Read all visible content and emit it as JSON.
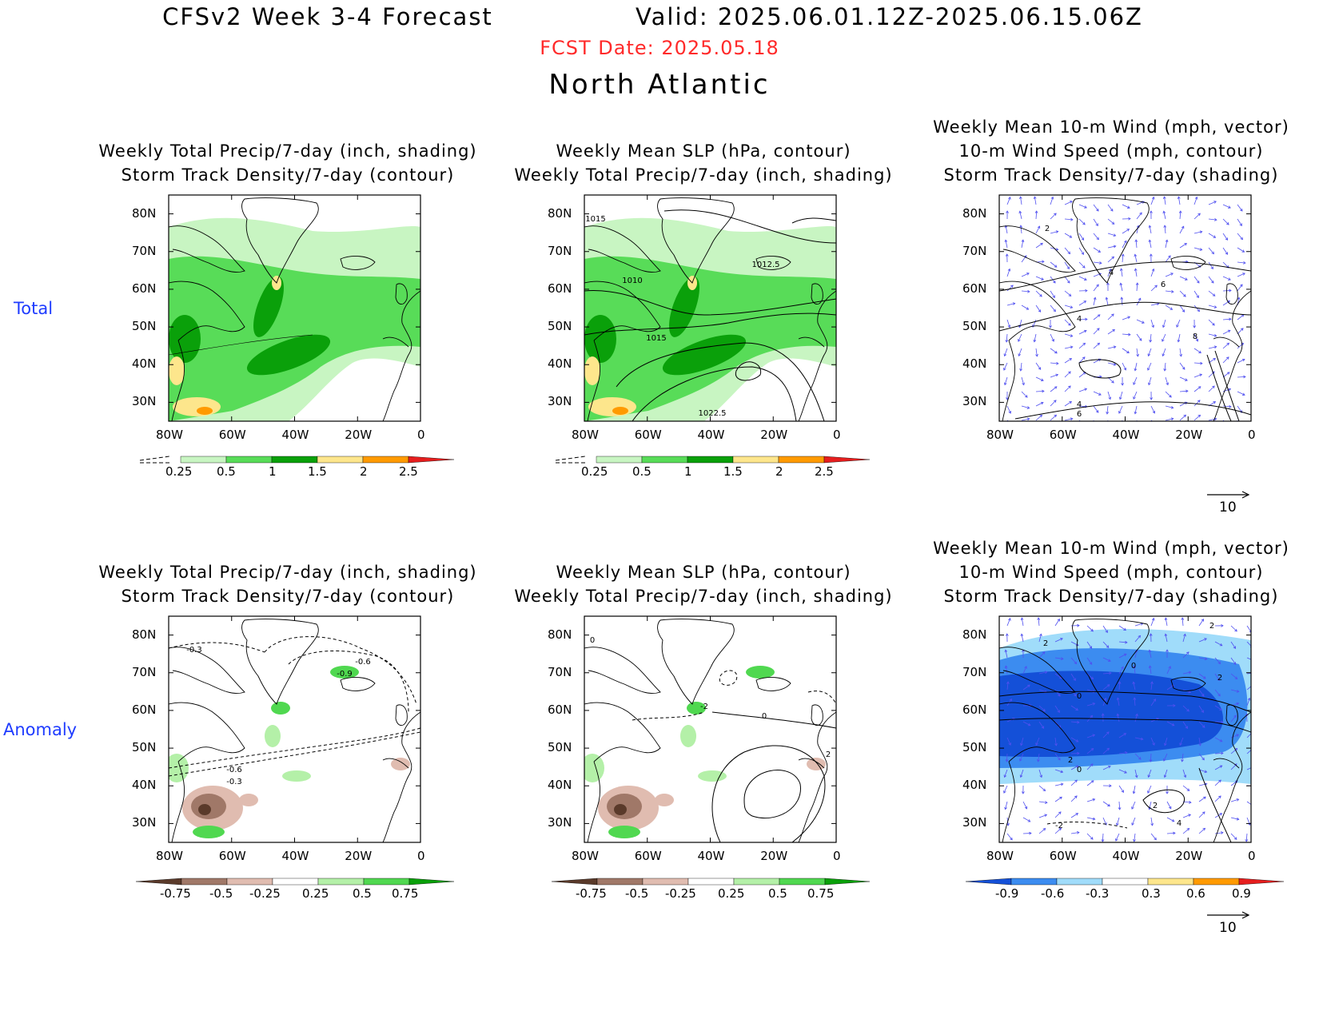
{
  "header": {
    "title": "CFSv2 Week 3-4 Forecast",
    "valid": "Valid: 2025.06.01.12Z-2025.06.15.06Z",
    "fcst_date": "FCST Date: 2025.05.18",
    "region": "North Atlantic"
  },
  "rows": {
    "total": "Total",
    "anomaly": "Anomaly"
  },
  "axes": {
    "lat_ticks": [
      "80N",
      "70N",
      "60N",
      "50N",
      "40N",
      "30N"
    ],
    "lon_ticks": [
      "80W",
      "60W",
      "40W",
      "20W",
      "0"
    ]
  },
  "colorbars": {
    "total_precip": [
      "0.25",
      "0.5",
      "1",
      "1.5",
      "2",
      "2.5"
    ],
    "anom_precip": [
      "-0.75",
      "-0.5",
      "-0.25",
      "0.25",
      "0.5",
      "0.75"
    ],
    "anom_storm": [
      "-0.9",
      "-0.6",
      "-0.3",
      "0.3",
      "0.6",
      "0.9"
    ]
  },
  "wind_ref": "10",
  "panels": [
    {
      "id": "total-precip-storm",
      "title_lines": [
        "",
        "Weekly Total Precip/7-day (inch, shading)",
        "Storm Track Density/7-day (contour)"
      ],
      "contour_labels": []
    },
    {
      "id": "total-slp-precip",
      "title_lines": [
        "",
        "Weekly Mean SLP (hPa, contour)",
        "Weekly Total Precip/7-day (inch, shading)"
      ],
      "contour_labels": [
        "1015",
        "1010",
        "1012.5",
        "1015",
        "1022.5"
      ]
    },
    {
      "id": "total-wind-storm",
      "title_lines": [
        "Weekly Mean 10-m Wind (mph, vector)",
        "10-m Wind Speed (mph, contour)",
        "Storm Track Density/7-day (shading)"
      ],
      "contour_labels": [
        "2",
        "4",
        "6",
        "4",
        "8",
        "4",
        "6"
      ]
    },
    {
      "id": "anom-precip-storm",
      "title_lines": [
        "",
        "Weekly Total Precip/7-day (inch, shading)",
        "Storm Track Density/7-day (contour)"
      ],
      "contour_labels": [
        "-0.3",
        "-0.6",
        "-0.9",
        "-0.6",
        "-0.3"
      ]
    },
    {
      "id": "anom-slp-precip",
      "title_lines": [
        "",
        "Weekly Mean SLP (hPa, contour)",
        "Weekly Total Precip/7-day (inch, shading)"
      ],
      "contour_labels": [
        "0",
        "-2",
        "0",
        "2"
      ]
    },
    {
      "id": "anom-wind-storm",
      "title_lines": [
        "Weekly Mean 10-m Wind (mph, vector)",
        "10-m Wind Speed (mph, contour)",
        "Storm Track Density/7-day (shading)"
      ],
      "contour_labels": [
        "2",
        "2",
        "0",
        "2",
        "0",
        "2",
        "0",
        "2",
        "-2",
        "4"
      ]
    }
  ],
  "colors": {
    "precip": [
      "#c8f5c2",
      "#58dc58",
      "#0aa00a",
      "#fde68c",
      "#ff9a00",
      "#e61e1e"
    ],
    "anom_dry": [
      "#5a3a2a",
      "#a07868",
      "#e0bcb0"
    ],
    "anom_wet": [
      "#b4f0a8",
      "#50d850",
      "#0aa00a"
    ],
    "storm_neg": [
      "#1450d8",
      "#3c8cf0",
      "#a0dcfa"
    ],
    "storm_pos": [
      "#fde68c",
      "#ff9a00",
      "#e61e1e"
    ],
    "vector": "#5050f0",
    "title_red": "#ff2a2a",
    "row_label_blue": "#1f3cff"
  }
}
